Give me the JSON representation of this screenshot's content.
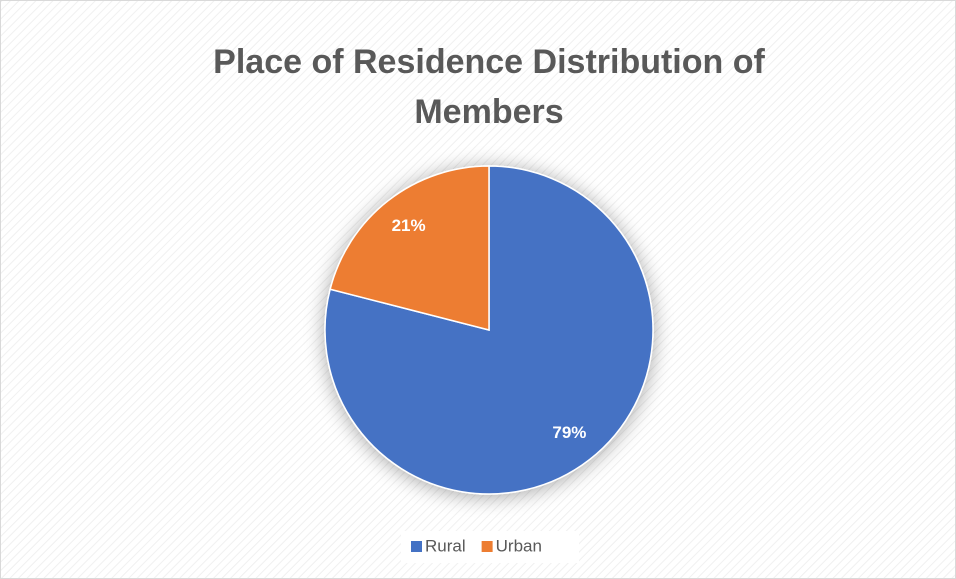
{
  "chart_data": {
    "type": "pie",
    "title": "Place of Residence Distribution of Members",
    "categories": [
      "Rural",
      "Urban"
    ],
    "values": [
      79,
      21
    ],
    "value_labels": [
      "79%",
      "21%"
    ],
    "colors": [
      "#4472c4",
      "#ed7d31"
    ],
    "legend": "bottom"
  }
}
